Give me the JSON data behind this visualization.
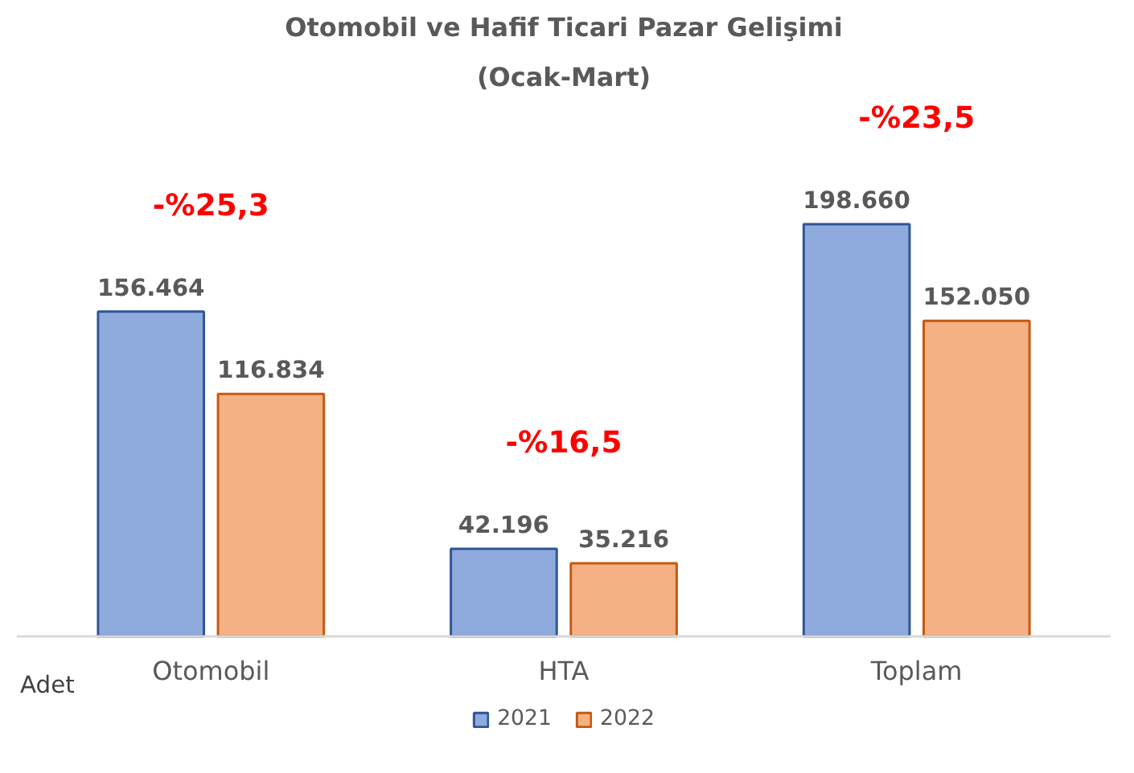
{
  "chart_data": {
    "type": "bar",
    "title": "Otomobil ve Hafif Ticari Pazar Gelişimi",
    "subtitle": "(Ocak-Mart)",
    "categories": [
      "Otomobil",
      "HTA",
      "Toplam"
    ],
    "series": [
      {
        "name": "2021",
        "color": "#8faadc",
        "values": [
          156464,
          42196,
          198660
        ],
        "value_labels": [
          "156.464",
          "42.196",
          "198.660"
        ]
      },
      {
        "name": "2022",
        "color": "#f4b183",
        "values": [
          116834,
          35216,
          152050
        ],
        "value_labels": [
          "116.834",
          "35.216",
          "152.050"
        ]
      }
    ],
    "annotations": [
      "-%25,3",
      "-%16,5",
      "-%23,5",
      "Adet"
    ],
    "legend": "bottom",
    "grid": false
  }
}
